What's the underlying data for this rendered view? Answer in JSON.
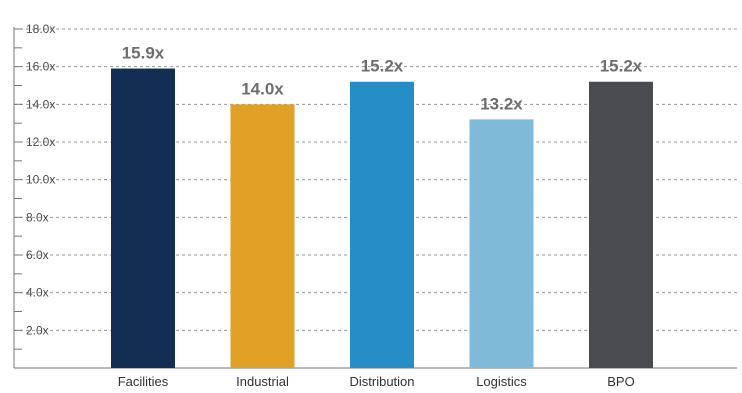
{
  "chart_data": {
    "type": "bar",
    "categories": [
      "Facilities",
      "Industrial",
      "Distribution",
      "Logistics",
      "BPO"
    ],
    "values": [
      15.9,
      14.0,
      15.2,
      13.2,
      15.2
    ],
    "data_labels": [
      "15.9x",
      "14.0x",
      "15.2x",
      "13.2x",
      "15.2x"
    ],
    "colors": [
      "#142d52",
      "#e0a126",
      "#268dc6",
      "#7fbad8",
      "#4a4b4e"
    ],
    "ylim": [
      0,
      18
    ],
    "yticks": [
      2,
      4,
      6,
      8,
      10,
      12,
      14,
      16,
      18
    ],
    "ytick_labels": [
      "2.0x",
      "4.0x",
      "6.0x",
      "8.0x",
      "10.0x",
      "12.0x",
      "14.0x",
      "16.0x",
      "18.0x"
    ],
    "grid": true,
    "title": "",
    "xlabel": "",
    "ylabel": ""
  }
}
